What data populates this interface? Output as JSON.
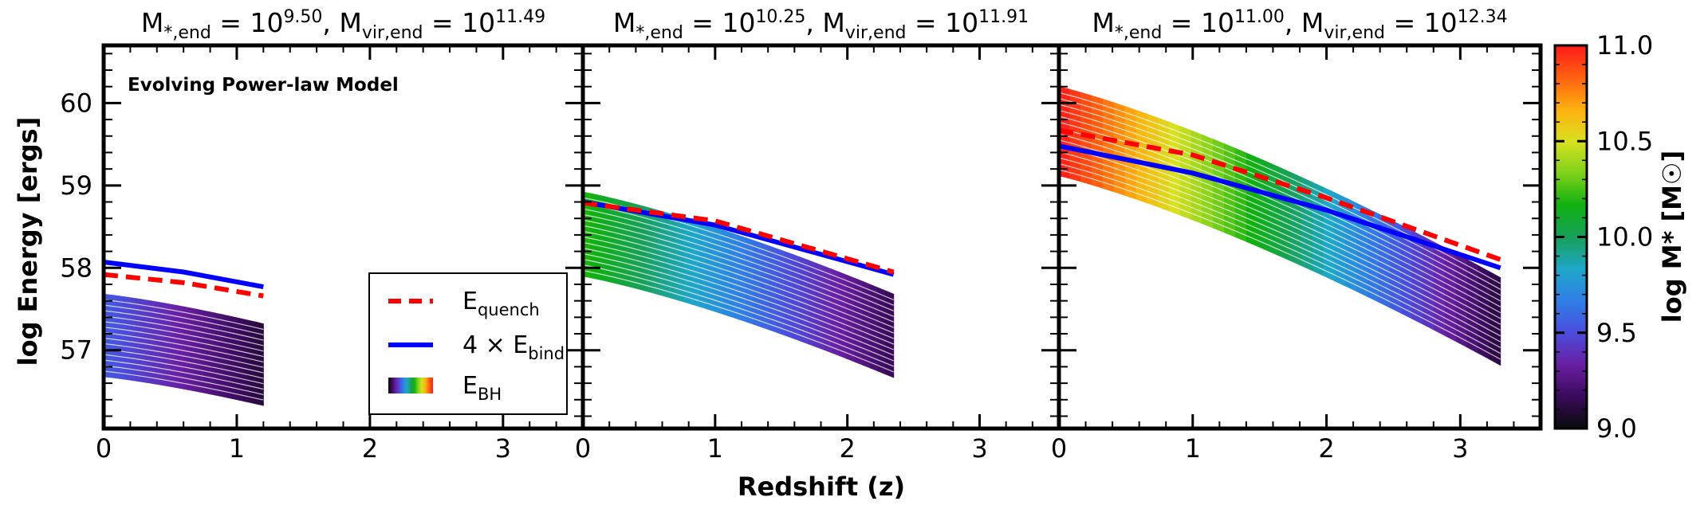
{
  "chart_data": {
    "type": "line",
    "model_label": "Evolving Power-law Model",
    "xlabel": "Redshift (z)",
    "ylabel": "log Energy [ergs]",
    "xlim": [
      0,
      3.6
    ],
    "ylim": [
      56.05,
      60.7
    ],
    "xticks": [
      0,
      1,
      2,
      3
    ],
    "yticks": [
      57,
      58,
      59,
      60
    ],
    "legend": {
      "location": "lower-right of first panel",
      "entries": [
        {
          "label": "E_quench",
          "base": "E",
          "sub": "quench",
          "color": "#ff0000",
          "style": "dashed"
        },
        {
          "label": "4 × E_bind",
          "base": "4 × E",
          "sub": "bind",
          "color": "#0000ff",
          "style": "solid"
        },
        {
          "label": "E_BH",
          "base": "E",
          "sub": "BH",
          "style": "colormap"
        }
      ]
    },
    "colorbar": {
      "label": "log M* [M☉]",
      "range": [
        9.0,
        11.0
      ],
      "ticks": [
        "9.0",
        "9.5",
        "10.0",
        "10.5",
        "11.0"
      ],
      "colormap": [
        "#0a0a0a",
        "#3a0b5c",
        "#6a1fa3",
        "#4b4ddd",
        "#2f7fe6",
        "#1ea7c8",
        "#18a05a",
        "#10b010",
        "#7fd21a",
        "#d8e020",
        "#ffb010",
        "#ff6010",
        "#ff1a1a"
      ]
    },
    "panels": [
      {
        "title": {
          "mstar_exp": "9.50",
          "mvir_exp": "11.49"
        },
        "z_end": 1.2,
        "quench": [
          [
            0,
            57.92
          ],
          [
            0.6,
            57.82
          ],
          [
            1.2,
            57.66
          ]
        ],
        "bind4": [
          [
            0,
            58.07
          ],
          [
            0.6,
            57.95
          ],
          [
            1.2,
            57.77
          ]
        ],
        "bh_band": {
          "top_start": 57.68,
          "bottom_start": 56.68,
          "top_end": 57.32,
          "bottom_end": 56.33,
          "mass_start": 9.55,
          "mass_end": 9.1
        }
      },
      {
        "title": {
          "mstar_exp": "10.25",
          "mvir_exp": "11.91"
        },
        "z_end": 2.35,
        "quench": [
          [
            0,
            58.79
          ],
          [
            1.0,
            58.57
          ],
          [
            2.35,
            57.95
          ]
        ],
        "bind4": [
          [
            0,
            58.8
          ],
          [
            1.0,
            58.52
          ],
          [
            2.35,
            57.92
          ]
        ],
        "bh_band": {
          "top_start": 58.92,
          "bottom_start": 57.9,
          "top_end": 57.68,
          "bottom_end": 56.67,
          "mass_start": 10.2,
          "mass_end": 9.15
        }
      },
      {
        "title": {
          "mstar_exp": "11.00",
          "mvir_exp": "12.34"
        },
        "z_end": 3.3,
        "quench": [
          [
            0,
            59.67
          ],
          [
            1.0,
            59.37
          ],
          [
            2.0,
            58.85
          ],
          [
            3.3,
            58.1
          ]
        ],
        "bind4": [
          [
            0,
            59.48
          ],
          [
            1.0,
            59.15
          ],
          [
            2.0,
            58.7
          ],
          [
            3.3,
            58.0
          ]
        ],
        "bh_band": {
          "top_start": 60.2,
          "bottom_start": 59.12,
          "top_end": 57.88,
          "bottom_end": 56.82,
          "mass_start": 11.0,
          "mass_end": 9.1
        }
      }
    ]
  }
}
